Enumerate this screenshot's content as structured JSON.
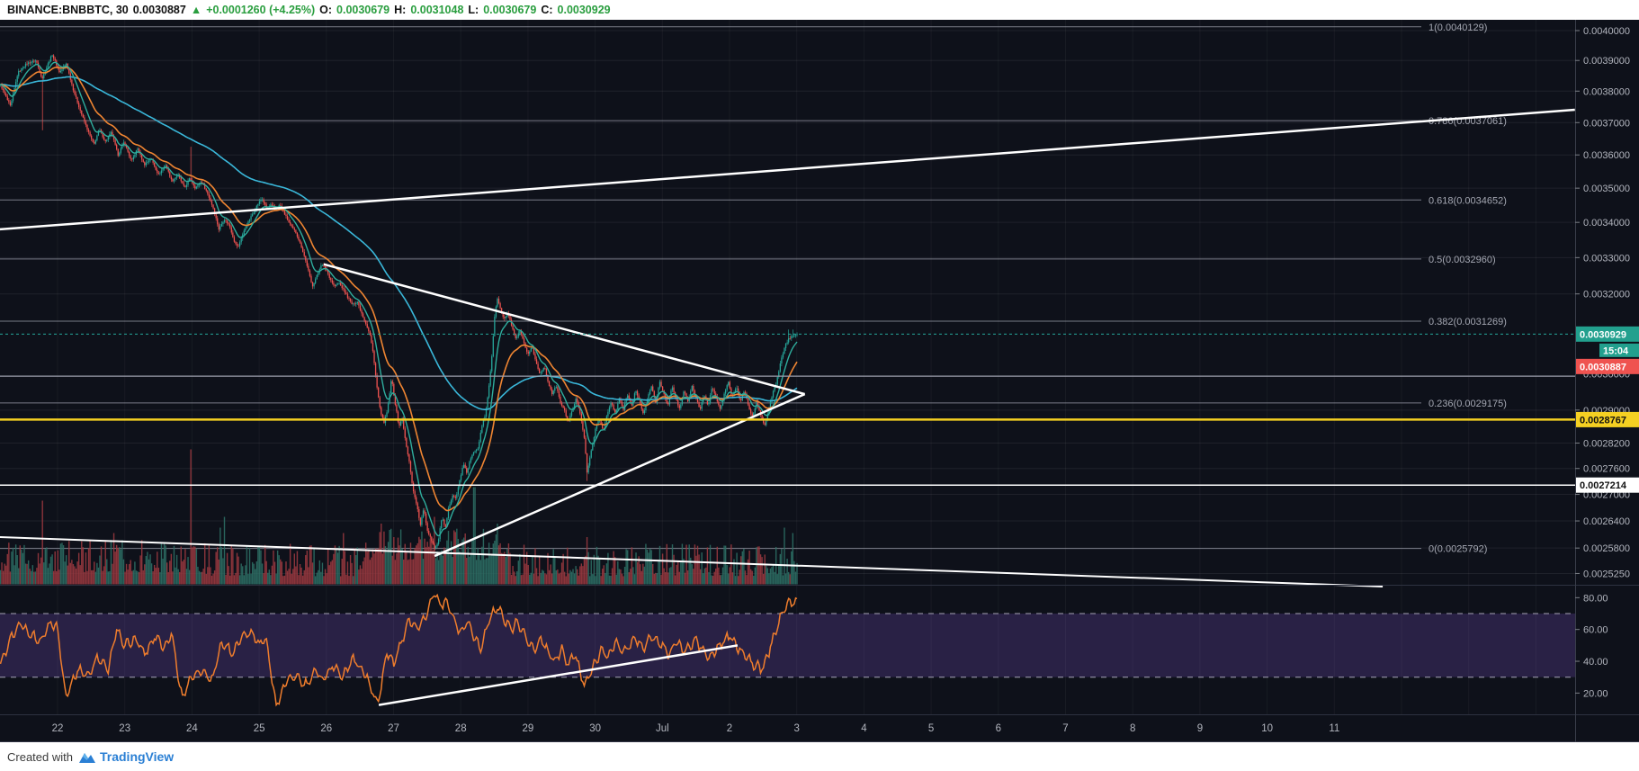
{
  "header": {
    "symbol": "BINANCE:BNBBTC, 30",
    "last_price": "0.0030887",
    "direction": "▲",
    "change": "+0.0001260 (+4.25%)",
    "o_label": "O:",
    "o": "0.0030679",
    "h_label": "H:",
    "h": "0.0031048",
    "l_label": "L:",
    "l": "0.0030679",
    "c_label": "C:",
    "c": "0.0030929"
  },
  "footer": {
    "created_with": "Created with",
    "brand": "TradingView"
  },
  "colors": {
    "up": "#26a69a",
    "down": "#ef5350",
    "vol_up": "#2c6e64",
    "vol_down": "#99393f",
    "ma_short": "#2fae9e",
    "ma_med": "#ef8532",
    "ma_long": "#3ab7d9",
    "fib": "#9b9eab",
    "axis_text": "#b2b5be",
    "bg": "#0e111a",
    "rsi_line": "#ef7d2d",
    "band": "rgba(123,82,200,0.25)",
    "yellow": "#f5d022",
    "white": "#ffffff",
    "header_green": "#2a9e3f",
    "tag_current": "#22a08e",
    "tag_red": "#ef5350",
    "brand_blue": "#2a7fd4",
    "separator": "#2e3241",
    "grid": "rgba(255,255,255,0.07)"
  },
  "chart_data": {
    "type": "candlestick+volume+rsi",
    "title": "BINANCE:BNBBTC 30-minute chart with Fibonacci retracement, symmetrical triangle trendlines and RSI",
    "x_axis_labels": [
      "22",
      "23",
      "24",
      "25",
      "26",
      "27",
      "28",
      "29",
      "30",
      "Jul",
      "2",
      "3",
      "4",
      "5",
      "6",
      "7",
      "8",
      "9",
      "10",
      "11"
    ],
    "y_axis_ticks": [
      {
        "label": "0.0040000",
        "price": 0.004
      },
      {
        "label": "0.0039000",
        "price": 0.0039
      },
      {
        "label": "0.0038000",
        "price": 0.0038
      },
      {
        "label": "0.0037000",
        "price": 0.0037
      },
      {
        "label": "0.0036000",
        "price": 0.0036
      },
      {
        "label": "0.0035000",
        "price": 0.0035
      },
      {
        "label": "0.0034000",
        "price": 0.0034
      },
      {
        "label": "0.0033000",
        "price": 0.0033
      },
      {
        "label": "0.0032000",
        "price": 0.0032
      },
      {
        "label": "0.0029000",
        "price": 0.0029
      },
      {
        "label": "0.0028200",
        "price": 0.00282
      },
      {
        "label": "0.0027600",
        "price": 0.00276
      },
      {
        "label": "0.0027000",
        "price": 0.0027
      },
      {
        "label": "0.0026400",
        "price": 0.00264
      },
      {
        "label": "0.0025800",
        "price": 0.00258
      },
      {
        "label": "0.0025250",
        "price": 0.002525
      }
    ],
    "hidden_tick": {
      "label": "0.0030000",
      "price": 0.00299
    },
    "fib_levels": [
      {
        "label": "1(0.0040129)",
        "price": 0.0040129
      },
      {
        "label": "0.786(0.0037061)",
        "price": 0.0037061
      },
      {
        "label": "0.618(0.0034652)",
        "price": 0.0034652
      },
      {
        "label": "0.5(0.0032960)",
        "price": 0.003296
      },
      {
        "label": "0.382(0.0031269)",
        "price": 0.0031269
      },
      {
        "label": "0.236(0.0029175)",
        "price": 0.0029175
      },
      {
        "label": "0(0.0025792)",
        "price": 0.0025792
      }
    ],
    "price_tags": [
      {
        "name": "current",
        "label": "0.0030929",
        "price": 0.0030929,
        "type": "teal"
      },
      {
        "name": "countdown",
        "label": "15:04",
        "type": "teal-small"
      },
      {
        "name": "last",
        "label": "0.0030887",
        "type": "red"
      },
      {
        "name": "yellow-line",
        "label": "0.0028767",
        "price": 0.0028767,
        "type": "yellow"
      },
      {
        "name": "white-line",
        "label": "0.0027214",
        "price": 0.0027214,
        "type": "white"
      }
    ],
    "horizontal_lines": [
      {
        "name": "yellow-support",
        "price": 0.0028767,
        "color": "#f5d022",
        "w": 2.5
      },
      {
        "name": "white-support",
        "price": 0.0027214,
        "color": "#ffffff",
        "w": 1.5
      },
      {
        "name": "gray-ray",
        "price": 0.0029845,
        "color": "#9b9eab",
        "w": 1.2
      },
      {
        "name": "current-price-line",
        "price": 0.0030929,
        "color": "#26a69a",
        "w": 1,
        "dash": "3,3"
      }
    ],
    "trend_lines": [
      {
        "name": "wedge-upper",
        "d1": 21.143,
        "p1": 0.00338,
        "d2": 44.58,
        "p2": 0.0037404,
        "w": 2.5
      },
      {
        "name": "wedge-lower",
        "d1": 21.143,
        "p1": 0.0026041,
        "d2": 41.72,
        "p2": 0.0024972,
        "w": 2
      },
      {
        "name": "triangle-upper",
        "d1": 25.96,
        "p1": 0.0032815,
        "d2": 33.12,
        "p2": 0.0029395,
        "w": 2.5
      },
      {
        "name": "triangle-lower",
        "d1": 27.61,
        "p1": 0.0025626,
        "d2": 33.12,
        "p2": 0.0029395,
        "w": 2.5
      }
    ],
    "path": [
      [
        21.15,
        0.00382
      ],
      [
        21.3,
        0.00375
      ],
      [
        21.41,
        0.00386
      ],
      [
        21.54,
        0.00389
      ],
      [
        21.68,
        0.0039
      ],
      [
        21.74,
        0.00386
      ],
      [
        21.77,
        0.00384
      ],
      [
        21.84,
        0.00388
      ],
      [
        21.92,
        0.00392
      ],
      [
        22.03,
        0.00386
      ],
      [
        22.13,
        0.00389
      ],
      [
        22.24,
        0.0038
      ],
      [
        22.35,
        0.00373
      ],
      [
        22.46,
        0.00367
      ],
      [
        22.54,
        0.00363
      ],
      [
        22.62,
        0.00368
      ],
      [
        22.71,
        0.00364
      ],
      [
        22.8,
        0.00367
      ],
      [
        22.9,
        0.0036
      ],
      [
        22.99,
        0.00364
      ],
      [
        23.1,
        0.00358
      ],
      [
        23.19,
        0.00362
      ],
      [
        23.29,
        0.00357
      ],
      [
        23.39,
        0.00359
      ],
      [
        23.5,
        0.00354
      ],
      [
        23.61,
        0.00357
      ],
      [
        23.7,
        0.00352
      ],
      [
        23.79,
        0.00354
      ],
      [
        23.89,
        0.0035
      ],
      [
        23.97,
        0.00353
      ],
      [
        24.05,
        0.0035
      ],
      [
        24.14,
        0.00352
      ],
      [
        24.22,
        0.00349
      ],
      [
        24.32,
        0.00344
      ],
      [
        24.4,
        0.00338
      ],
      [
        24.48,
        0.00341
      ],
      [
        24.56,
        0.00339
      ],
      [
        24.64,
        0.00334
      ],
      [
        24.69,
        0.00333
      ],
      [
        24.74,
        0.00336
      ],
      [
        24.81,
        0.00339
      ],
      [
        24.89,
        0.00342
      ],
      [
        24.97,
        0.00345
      ],
      [
        25.04,
        0.00347
      ],
      [
        25.11,
        0.00344
      ],
      [
        25.17,
        0.00345
      ],
      [
        25.24,
        0.00344
      ],
      [
        25.31,
        0.00345
      ],
      [
        25.39,
        0.00342
      ],
      [
        25.47,
        0.00339
      ],
      [
        25.55,
        0.00337
      ],
      [
        25.63,
        0.00333
      ],
      [
        25.71,
        0.00328
      ],
      [
        25.79,
        0.00322
      ],
      [
        25.86,
        0.00325
      ],
      [
        25.92,
        0.00328
      ],
      [
        25.99,
        0.00327
      ],
      [
        26.06,
        0.00324
      ],
      [
        26.12,
        0.00322
      ],
      [
        26.19,
        0.00323
      ],
      [
        26.26,
        0.00321
      ],
      [
        26.32,
        0.00319
      ],
      [
        26.39,
        0.00317
      ],
      [
        26.46,
        0.00318
      ],
      [
        26.52,
        0.00315
      ],
      [
        26.59,
        0.00312
      ],
      [
        26.65,
        0.00309
      ],
      [
        26.7,
        0.00304
      ],
      [
        26.75,
        0.00296
      ],
      [
        26.81,
        0.00289
      ],
      [
        26.86,
        0.00287
      ],
      [
        26.91,
        0.0029
      ],
      [
        26.97,
        0.00298
      ],
      [
        27.02,
        0.00292
      ],
      [
        27.08,
        0.00286
      ],
      [
        27.13,
        0.00288
      ],
      [
        27.18,
        0.00282
      ],
      [
        27.24,
        0.00277
      ],
      [
        27.29,
        0.00271
      ],
      [
        27.34,
        0.00268
      ],
      [
        27.4,
        0.00263
      ],
      [
        27.45,
        0.00267
      ],
      [
        27.5,
        0.00262
      ],
      [
        27.56,
        0.0026
      ],
      [
        27.61,
        0.00258
      ],
      [
        27.66,
        0.00259
      ],
      [
        27.72,
        0.00265
      ],
      [
        27.77,
        0.00262
      ],
      [
        27.82,
        0.00267
      ],
      [
        27.88,
        0.0027
      ],
      [
        27.93,
        0.00269
      ],
      [
        27.98,
        0.00273
      ],
      [
        28.04,
        0.00277
      ],
      [
        28.09,
        0.00275
      ],
      [
        28.14,
        0.00278
      ],
      [
        28.2,
        0.0028
      ],
      [
        28.26,
        0.00281
      ],
      [
        28.31,
        0.00286
      ],
      [
        28.37,
        0.00289
      ],
      [
        28.42,
        0.00296
      ],
      [
        28.46,
        0.00303
      ],
      [
        28.5,
        0.00313
      ],
      [
        28.54,
        0.00319
      ],
      [
        28.59,
        0.00316
      ],
      [
        28.64,
        0.00313
      ],
      [
        28.7,
        0.00315
      ],
      [
        28.76,
        0.00311
      ],
      [
        28.82,
        0.00308
      ],
      [
        28.88,
        0.0031
      ],
      [
        28.94,
        0.00307
      ],
      [
        29.0,
        0.00304
      ],
      [
        29.06,
        0.00306
      ],
      [
        29.12,
        0.00302
      ],
      [
        29.18,
        0.00299
      ],
      [
        29.24,
        0.00301
      ],
      [
        29.3,
        0.00297
      ],
      [
        29.36,
        0.00294
      ],
      [
        29.42,
        0.00296
      ],
      [
        29.48,
        0.00292
      ],
      [
        29.54,
        0.0029
      ],
      [
        29.6,
        0.00287
      ],
      [
        29.66,
        0.0029
      ],
      [
        29.72,
        0.00293
      ],
      [
        29.78,
        0.00289
      ],
      [
        29.84,
        0.00283
      ],
      [
        29.88,
        0.00275
      ],
      [
        29.94,
        0.0028
      ],
      [
        30.0,
        0.00285
      ],
      [
        30.06,
        0.00288
      ],
      [
        30.12,
        0.00285
      ],
      [
        30.18,
        0.00289
      ],
      [
        30.24,
        0.00292
      ],
      [
        30.3,
        0.00289
      ],
      [
        30.36,
        0.00293
      ],
      [
        30.42,
        0.0029
      ],
      [
        30.48,
        0.00294
      ],
      [
        30.54,
        0.00291
      ],
      [
        30.6,
        0.00295
      ],
      [
        30.66,
        0.00292
      ],
      [
        30.72,
        0.00289
      ],
      [
        30.78,
        0.00293
      ],
      [
        30.84,
        0.00296
      ],
      [
        30.9,
        0.00292
      ],
      [
        30.96,
        0.00297
      ],
      [
        31.02,
        0.00294
      ],
      [
        31.08,
        0.00291
      ],
      [
        31.14,
        0.00296
      ],
      [
        31.2,
        0.00293
      ],
      [
        31.26,
        0.0029
      ],
      [
        31.32,
        0.00295
      ],
      [
        31.38,
        0.00292
      ],
      [
        31.44,
        0.00296
      ],
      [
        31.5,
        0.00293
      ],
      [
        31.56,
        0.0029
      ],
      [
        31.62,
        0.00294
      ],
      [
        31.68,
        0.00291
      ],
      [
        31.74,
        0.00296
      ],
      [
        31.8,
        0.00293
      ],
      [
        31.86,
        0.0029
      ],
      [
        31.92,
        0.00294
      ],
      [
        31.98,
        0.00297
      ],
      [
        32.04,
        0.00293
      ],
      [
        32.1,
        0.00296
      ],
      [
        32.16,
        0.00292
      ],
      [
        32.22,
        0.00295
      ],
      [
        32.28,
        0.00291
      ],
      [
        32.34,
        0.00288
      ],
      [
        32.4,
        0.00292
      ],
      [
        32.46,
        0.00289
      ],
      [
        32.52,
        0.00286
      ],
      [
        32.58,
        0.0029
      ],
      [
        32.64,
        0.00294
      ],
      [
        32.7,
        0.00297
      ],
      [
        32.76,
        0.00302
      ],
      [
        32.82,
        0.00306
      ],
      [
        32.88,
        0.00308
      ],
      [
        32.94,
        0.00309
      ],
      [
        33.0,
        0.0030929
      ]
    ],
    "wick_events": [
      [
        21.77,
        "low",
        0.003676
      ],
      [
        23.99,
        "high",
        0.003625
      ],
      [
        27.61,
        "low",
        0.0025792
      ],
      [
        29.88,
        "low",
        0.002731
      ],
      [
        32.88,
        "high",
        0.0031048
      ],
      [
        32.94,
        "high",
        0.0031048
      ]
    ],
    "volume_spikes": [
      [
        21.77,
        0.62
      ],
      [
        22.84,
        0.38
      ],
      [
        23.99,
        1.0
      ],
      [
        24.42,
        0.42
      ],
      [
        24.48,
        0.5
      ],
      [
        25.47,
        0.3
      ],
      [
        26.26,
        0.38
      ],
      [
        26.81,
        0.45
      ],
      [
        27.0,
        0.35
      ],
      [
        27.61,
        0.5
      ],
      [
        27.9,
        0.4
      ],
      [
        28.2,
        0.72
      ],
      [
        28.54,
        0.45
      ],
      [
        29.88,
        0.35
      ],
      [
        31.3,
        0.3
      ],
      [
        32.82,
        0.42
      ],
      [
        32.94,
        0.38
      ]
    ],
    "rsi": {
      "ticks": [
        "80.00",
        "60.00",
        "40.00",
        "20.00"
      ],
      "band": [
        70,
        30
      ],
      "trendline": [
        [
          26.78,
          12.5
        ],
        [
          32.12,
          50
        ]
      ],
      "path": [
        [
          21.15,
          38
        ],
        [
          21.3,
          55
        ],
        [
          21.45,
          64
        ],
        [
          21.6,
          57
        ],
        [
          21.75,
          52
        ],
        [
          21.9,
          65
        ],
        [
          22.0,
          60
        ],
        [
          22.12,
          16
        ],
        [
          22.3,
          35
        ],
        [
          22.45,
          30
        ],
        [
          22.6,
          43
        ],
        [
          22.75,
          34
        ],
        [
          22.88,
          60
        ],
        [
          23.0,
          50
        ],
        [
          23.15,
          54
        ],
        [
          23.3,
          45
        ],
        [
          23.45,
          56
        ],
        [
          23.6,
          48
        ],
        [
          23.7,
          58
        ],
        [
          23.85,
          16
        ],
        [
          24.0,
          30
        ],
        [
          24.15,
          33
        ],
        [
          24.3,
          28
        ],
        [
          24.45,
          52
        ],
        [
          24.6,
          45
        ],
        [
          24.75,
          55
        ],
        [
          24.9,
          58
        ],
        [
          25.0,
          50
        ],
        [
          25.1,
          55
        ],
        [
          25.25,
          11
        ],
        [
          25.4,
          28
        ],
        [
          25.55,
          30
        ],
        [
          25.7,
          25
        ],
        [
          25.85,
          35
        ],
        [
          25.95,
          27
        ],
        [
          26.1,
          38
        ],
        [
          26.25,
          30
        ],
        [
          26.4,
          42
        ],
        [
          26.5,
          36
        ],
        [
          26.6,
          30
        ],
        [
          26.77,
          13
        ],
        [
          26.9,
          45
        ],
        [
          27.0,
          38
        ],
        [
          27.1,
          50
        ],
        [
          27.23,
          67
        ],
        [
          27.35,
          60
        ],
        [
          27.5,
          70
        ],
        [
          27.6,
          83
        ],
        [
          27.7,
          75
        ],
        [
          27.8,
          78
        ],
        [
          27.9,
          65
        ],
        [
          28.0,
          58
        ],
        [
          28.1,
          65
        ],
        [
          28.2,
          55
        ],
        [
          28.3,
          48
        ],
        [
          28.42,
          65
        ],
        [
          28.54,
          75
        ],
        [
          28.65,
          66
        ],
        [
          28.75,
          60
        ],
        [
          28.85,
          65
        ],
        [
          29.0,
          52
        ],
        [
          29.1,
          48
        ],
        [
          29.2,
          55
        ],
        [
          29.3,
          45
        ],
        [
          29.4,
          40
        ],
        [
          29.5,
          48
        ],
        [
          29.6,
          38
        ],
        [
          29.7,
          45
        ],
        [
          29.84,
          25
        ],
        [
          29.95,
          35
        ],
        [
          30.1,
          48
        ],
        [
          30.2,
          42
        ],
        [
          30.3,
          52
        ],
        [
          30.45,
          46
        ],
        [
          30.6,
          55
        ],
        [
          30.7,
          48
        ],
        [
          30.85,
          56
        ],
        [
          31.0,
          50
        ],
        [
          31.1,
          44
        ],
        [
          31.2,
          52
        ],
        [
          31.35,
          46
        ],
        [
          31.5,
          54
        ],
        [
          31.6,
          47
        ],
        [
          31.7,
          42
        ],
        [
          31.85,
          50
        ],
        [
          32.0,
          56
        ],
        [
          32.1,
          50
        ],
        [
          32.2,
          45
        ],
        [
          32.35,
          38
        ],
        [
          32.5,
          35
        ],
        [
          32.6,
          48
        ],
        [
          32.7,
          60
        ],
        [
          32.8,
          72
        ],
        [
          32.9,
          78
        ],
        [
          33.0,
          76
        ]
      ]
    }
  }
}
